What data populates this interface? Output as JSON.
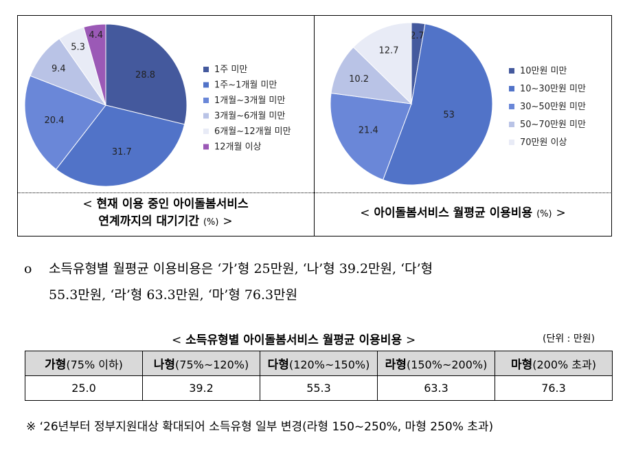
{
  "chart_data": [
    {
      "type": "pie",
      "title": "현재 이용 중인 아이돌봄서비스 연계까지의 대기기간",
      "unit": "(%)",
      "legend_position": "right",
      "categories": [
        "1주 미만",
        "1주~1개월 미만",
        "1개월~3개월 미만",
        "3개월~6개월 미만",
        "6개월~12개월 미만",
        "12개월 이상"
      ],
      "values": [
        28.8,
        31.7,
        20.4,
        9.4,
        5.3,
        4.4
      ],
      "colors": [
        "#44599d",
        "#5173c8",
        "#6a87d8",
        "#b9c3e6",
        "#e8ebf6",
        "#9b59b6"
      ]
    },
    {
      "type": "pie",
      "title": "아이돌봄서비스 월평균 이용비용",
      "unit": "(%)",
      "legend_position": "right",
      "categories": [
        "10만원 미만",
        "10~30만원 미만",
        "30~50만원 미만",
        "50~70만원 미만",
        "70만원 이상"
      ],
      "values": [
        2.7,
        53,
        21.4,
        10.2,
        12.7
      ],
      "colors": [
        "#44599d",
        "#5173c8",
        "#6a87d8",
        "#b9c3e6",
        "#e8ebf6"
      ]
    }
  ],
  "captions": {
    "left_line1": "현재 이용 중인 아이돌봄서비스",
    "left_line2": "연계까지의 대기기간",
    "left_unit": "(%)",
    "right_text": "아이돌봄서비스 월평균 이용비용",
    "right_unit": "(%)",
    "open": "<",
    "close": ">"
  },
  "paragraph": {
    "bullet": "o",
    "line1": "소득유형별 월평균 이용비용은 ‘가’형 25만원, ‘나’형 39.2만원, ‘다’형",
    "line2": "55.3만원, ‘라’형 63.3만원, ‘마’형 76.3만원"
  },
  "table": {
    "title": "소득유형별 아이돌봄서비스 월평균 이용비용",
    "unit": "(단위 : 만원)",
    "headers": [
      {
        "name": "가형",
        "range": "(75% 이하)"
      },
      {
        "name": "나형",
        "range": "(75%~120%)"
      },
      {
        "name": "다형",
        "range": "(120%~150%)"
      },
      {
        "name": "라형",
        "range": "(150%~200%)"
      },
      {
        "name": "마형",
        "range": "(200% 초과)"
      }
    ],
    "values": [
      "25.0",
      "39.2",
      "55.3",
      "63.3",
      "76.3"
    ]
  },
  "note": "※ ‘26년부터 정부지원대상 확대되어 소득유형 일부 변경(라형 150~250%, 마형 250% 초과)"
}
